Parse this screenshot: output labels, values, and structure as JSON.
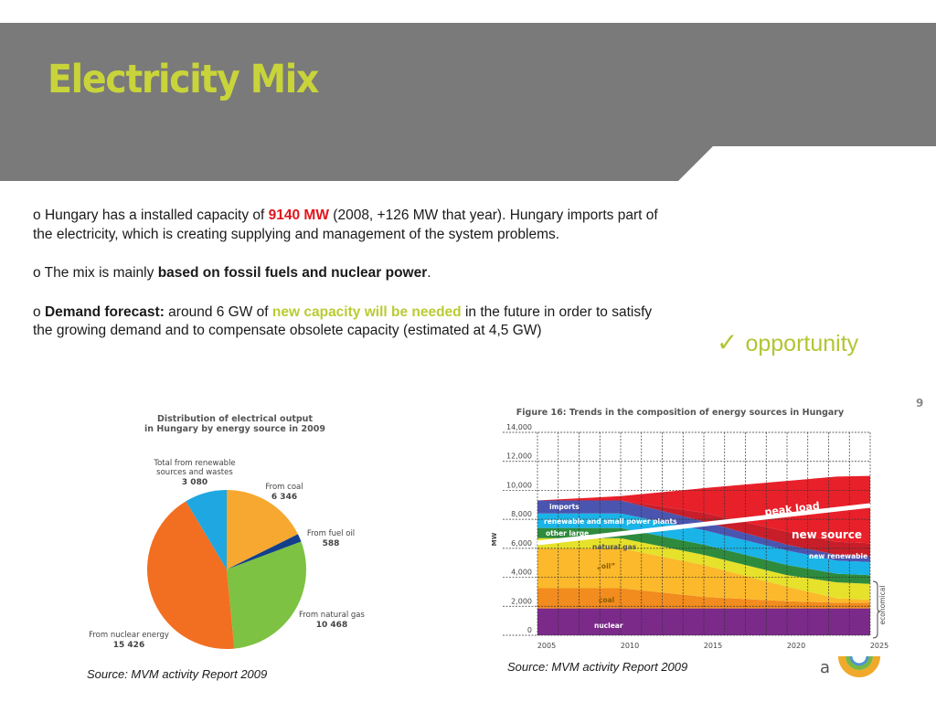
{
  "slide": {
    "title": "Electricity Mix",
    "page_number": "9",
    "colors": {
      "header_bg": "#7a7a7a",
      "title": "#c8d43a",
      "highlight_red": "#e3141b",
      "highlight_green": "#b9cc33"
    }
  },
  "bullets": [
    {
      "marker": "o",
      "pre": "Hungary has a installed capacity of ",
      "highlight": "9140 MW",
      "post": " (2008, +126 MW that year). Hungary imports part of the electricity, which is creating supplying and management of the system problems."
    },
    {
      "marker": "o",
      "pre": "The mix is mainly ",
      "highlight": "based on fossil fuels and nuclear power",
      "post": "."
    },
    {
      "marker": "o",
      "lead": "Demand forecast:",
      "pre": " around 6 GW of ",
      "highlight": "new capacity will be needed",
      "post": " in the future in order to satisfy the growing demand and to compensate obsolete capacity (estimated at 4,5 GW)"
    }
  ],
  "callout": {
    "icon": "check-icon",
    "glyph": "✓",
    "label": "opportunity"
  },
  "sources": {
    "left": "Source: MVM activity Report 2009",
    "right": "Source: MVM activity Report 2009"
  },
  "chart_data": [
    {
      "type": "pie",
      "title": "Distribution of electrical output in Hungary by energy source in 2009",
      "title_lines": [
        "Distribution of electrical output",
        "in Hungary by energy source in 2009"
      ],
      "slices": [
        {
          "label": "From coal",
          "value": 6346,
          "display": "6 346",
          "color": "#f7a830"
        },
        {
          "label": "From fuel oil",
          "value": 588,
          "display": "588",
          "color": "#123f8c"
        },
        {
          "label": "From natural gas",
          "value": 10468,
          "display": "10 468",
          "color": "#7dc242"
        },
        {
          "label": "From nuclear energy",
          "value": 15426,
          "display": "15 426",
          "color": "#f26f21"
        },
        {
          "label": "Total from renewable sources and wastes",
          "label_lines": [
            "Total from renewable",
            "sources and wastes"
          ],
          "value": 3080,
          "display": "3 080",
          "color": "#1ea7e1"
        }
      ]
    },
    {
      "type": "area",
      "title": "Figure 16: Trends in the composition of energy sources in Hungary",
      "xlabel": "",
      "ylabel": "MW",
      "x_ticks": [
        "2005",
        "2010",
        "2015",
        "2020",
        "2025"
      ],
      "y_ticks": [
        "14,000",
        "12,000",
        "10,000",
        "8,000",
        "6,000",
        "4,000",
        "2,000",
        "0"
      ],
      "ylim": [
        0,
        14000
      ],
      "xlim": [
        2005,
        2025
      ],
      "grid": true,
      "x": [
        2005,
        2010,
        2015,
        2020,
        2023,
        2025
      ],
      "series": [
        {
          "name": "nuclear",
          "color": "#7b2a8a",
          "values": [
            1850,
            1850,
            1850,
            1850,
            1850,
            1850
          ]
        },
        {
          "name": "coal",
          "color": "#f28c1e",
          "values": [
            1400,
            1400,
            800,
            500,
            400,
            400
          ]
        },
        {
          "name": "„oil”",
          "color": "#fbb92b",
          "values": [
            2750,
            2750,
            2200,
            1000,
            300,
            200
          ]
        },
        {
          "name": "natural gas",
          "color": "#e6e12a",
          "values": [
            700,
            700,
            700,
            800,
            1100,
            1100
          ]
        },
        {
          "name": "other large",
          "color": "#2e8b3d",
          "values": [
            700,
            700,
            700,
            700,
            600,
            600
          ]
        },
        {
          "name": "renewable and small power plants",
          "color": "#1ab4e8",
          "values": [
            1000,
            1000,
            1000,
            1000,
            900,
            900
          ]
        },
        {
          "name": "imports",
          "color": "#4a55b0",
          "values": [
            900,
            900,
            600,
            400,
            400,
            400
          ]
        },
        {
          "name": "new renewable",
          "color": "#c81e2a",
          "values": [
            0,
            0,
            600,
            900,
            900,
            900
          ]
        },
        {
          "name": "new source",
          "color": "#e8202a",
          "values": [
            0,
            300,
            1700,
            3500,
            4500,
            4650
          ]
        }
      ],
      "lines": [
        {
          "name": "peak load",
          "color": "#ffffff",
          "values_at": {
            "2005": 6400,
            "2025": 8950
          }
        }
      ],
      "annotations": [
        "imports",
        "renewable and small power plants",
        "other large",
        "natural gas",
        "„oil”",
        "coal",
        "nuclear",
        "peak load",
        "new source",
        "new renewable",
        "economical"
      ]
    }
  ]
}
